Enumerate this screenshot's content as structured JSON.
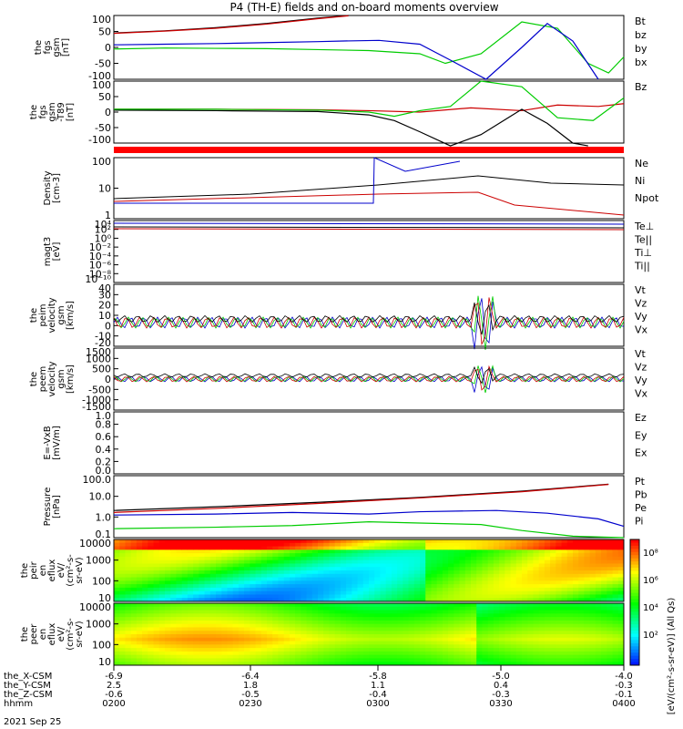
{
  "chart_data": {
    "type": "line",
    "title": "P4 (TH-E) fields and on-board moments overview",
    "panels": [
      {
        "id": "fgs",
        "ylabel": [
          "the",
          "fgs",
          "gsm",
          "[nT]"
        ],
        "yticks": [
          "100",
          "50",
          "0",
          "-50",
          "-100"
        ],
        "ylim": [
          -100,
          100
        ],
        "legend": [
          {
            "label": "Bt",
            "color": "#000000"
          },
          {
            "label": "bz",
            "color": "#cc0000"
          },
          {
            "label": "by",
            "color": "#00cc00"
          },
          {
            "label": "bx",
            "color": "#0000cc"
          }
        ],
        "series": [
          {
            "name": "Bt",
            "color": "#000000",
            "x": [
              0,
              0.1,
              0.2,
              0.3,
              0.4,
              0.46
            ],
            "y": [
              45,
              52,
              62,
              75,
              92,
              100
            ]
          },
          {
            "name": "bz",
            "color": "#cc0000",
            "x": [
              0,
              0.1,
              0.2,
              0.3,
              0.4,
              0.46
            ],
            "y": [
              44,
              51,
              60,
              73,
              90,
              99
            ]
          },
          {
            "name": "by",
            "color": "#00cc00",
            "x": [
              0,
              0.1,
              0.2,
              0.3,
              0.4,
              0.5,
              0.6,
              0.65,
              0.72,
              0.8,
              0.87,
              0.93,
              0.97,
              1.0
            ],
            "y": [
              -5,
              -2,
              -3,
              -4,
              -7,
              -10,
              -20,
              -50,
              -20,
              80,
              60,
              -50,
              -80,
              -30
            ]
          },
          {
            "name": "bx",
            "color": "#0000cc",
            "x": [
              0,
              0.1,
              0.2,
              0.3,
              0.4,
              0.45,
              0.52,
              0.6,
              0.66,
              0.73,
              0.8,
              0.85,
              0.9,
              0.95
            ],
            "y": [
              8,
              10,
              12,
              15,
              18,
              20,
              22,
              10,
              -40,
              -100,
              0,
              75,
              20,
              -100
            ]
          }
        ]
      },
      {
        "id": "fgs_smooth",
        "ylabel": [
          "the",
          "fgs",
          "gsm",
          "-T89",
          "[nT]"
        ],
        "yticks": [
          "100",
          "50",
          "0",
          "-50",
          "-100"
        ],
        "ylim": [
          -120,
          100
        ],
        "legend": [
          {
            "label": "Bz",
            "color": "#cc0000"
          }
        ],
        "series": [
          {
            "name": "Bz",
            "color": "#cc0000",
            "x": [
              0,
              0.2,
              0.4,
              0.5,
              0.6,
              0.7,
              0.8,
              0.87,
              0.95,
              1.0
            ],
            "y": [
              0,
              0,
              -2,
              -5,
              -10,
              5,
              -5,
              15,
              10,
              20
            ]
          },
          {
            "name": "k",
            "color": "#000000",
            "x": [
              0,
              0.2,
              0.4,
              0.5,
              0.55,
              0.6,
              0.66,
              0.72,
              0.8,
              0.85,
              0.9,
              0.93
            ],
            "y": [
              -3,
              -5,
              -8,
              -20,
              -40,
              -80,
              -130,
              -90,
              0,
              -50,
              -120,
              -130
            ]
          },
          {
            "name": "g",
            "color": "#00cc00",
            "x": [
              0,
              0.2,
              0.4,
              0.5,
              0.55,
              0.6,
              0.66,
              0.72,
              0.8,
              0.87,
              0.94,
              1.0
            ],
            "y": [
              0,
              0,
              -3,
              -10,
              -25,
              -5,
              10,
              100,
              80,
              -30,
              -40,
              40
            ]
          }
        ]
      },
      {
        "id": "density",
        "ylabel": [
          "Density",
          "[cm-3]"
        ],
        "yticks": [
          "100",
          "10",
          "1"
        ],
        "log": true,
        "legend": [
          {
            "label": "Ne",
            "color": "#cc0000"
          },
          {
            "label": "Ni",
            "color": "#000000"
          },
          {
            "label": "Npot",
            "color": "#0000cc"
          }
        ]
      },
      {
        "id": "temperature",
        "ylabel": [
          "magt3",
          "[eV]"
        ],
        "yticks": [
          "10⁴",
          "10²",
          "10⁰",
          "10⁻²",
          "10⁻⁴",
          "10⁻⁶",
          "10⁻⁸",
          "10⁻¹⁰"
        ],
        "legend": [
          {
            "label": "Te⊥",
            "color": "#cc0000"
          },
          {
            "label": "Te||",
            "color": "#000000"
          },
          {
            "label": "Ti⊥",
            "color": "#cc0000"
          },
          {
            "label": "Ti||",
            "color": "#00cc00"
          }
        ]
      },
      {
        "id": "peim_velocity",
        "ylabel": [
          "the",
          "peim",
          "velocity",
          "gsm",
          "[km/s]"
        ],
        "yticks": [
          "40",
          "30",
          "20",
          "10",
          "0",
          "-10",
          "-20"
        ],
        "ylim": [
          -20,
          40
        ],
        "legend": [
          {
            "label": "Vt",
            "color": "#000000"
          },
          {
            "label": "Vz",
            "color": "#cc0000"
          },
          {
            "label": "Vy",
            "color": "#00cc00"
          },
          {
            "label": "Vx",
            "color": "#0000cc"
          }
        ]
      },
      {
        "id": "peem_velocity",
        "ylabel": [
          "the",
          "peem",
          "velocity",
          "gsm",
          "[km/s]"
        ],
        "yticks": [
          "1500",
          "1000",
          "500",
          "0",
          "-500",
          "-1000",
          "-1500"
        ],
        "ylim": [
          -1500,
          1500
        ],
        "legend": [
          {
            "label": "Vt",
            "color": "#000000"
          },
          {
            "label": "Vz",
            "color": "#cc0000"
          },
          {
            "label": "Vy",
            "color": "#00cc00"
          },
          {
            "label": "Vx",
            "color": "#0000cc"
          }
        ]
      },
      {
        "id": "efield",
        "ylabel": [
          "E=-VxB",
          "[mV/m]"
        ],
        "yticks": [
          "1.0",
          "0.8",
          "0.6",
          "0.4",
          "0.2",
          "0.0"
        ],
        "ylim": [
          0,
          1
        ],
        "legend": [
          {
            "label": "Ez",
            "color": "#cc0000"
          },
          {
            "label": "Ey",
            "color": "#00cc00"
          },
          {
            "label": "Ex",
            "color": "#0000cc"
          }
        ]
      },
      {
        "id": "pressure",
        "ylabel": [
          "Pressure",
          "[nPa]"
        ],
        "yticks": [
          "100.0",
          "10.0",
          "1.0",
          "0.1"
        ],
        "log": true,
        "legend": [
          {
            "label": "Pt",
            "color": "#000000"
          },
          {
            "label": "Pb",
            "color": "#cc0000"
          },
          {
            "label": "Pe",
            "color": "#00cc00"
          },
          {
            "label": "Pi",
            "color": "#0000cc"
          }
        ],
        "series": [
          {
            "name": "Pt",
            "color": "#000000",
            "x": [
              0,
              0.2,
              0.4,
              0.6,
              0.8,
              0.97
            ],
            "y": [
              1.4,
              2.2,
              3.8,
              7,
              15,
              35
            ]
          },
          {
            "name": "Pb",
            "color": "#cc0000",
            "x": [
              0,
              0.2,
              0.4,
              0.6,
              0.8,
              0.97
            ],
            "y": [
              1.1,
              1.8,
              3.3,
              6.5,
              14,
              34
            ]
          },
          {
            "name": "Pe",
            "color": "#00cc00",
            "x": [
              0,
              0.2,
              0.35,
              0.5,
              0.6,
              0.72,
              0.8,
              0.9,
              1.0
            ],
            "y": [
              0.15,
              0.18,
              0.22,
              0.35,
              0.3,
              0.25,
              0.12,
              0.06,
              0.05
            ]
          },
          {
            "name": "Pi",
            "color": "#0000cc",
            "x": [
              0,
              0.2,
              0.35,
              0.5,
              0.6,
              0.75,
              0.85,
              0.95,
              1.0
            ],
            "y": [
              0.8,
              0.9,
              1.1,
              0.9,
              1.2,
              1.4,
              1.0,
              0.5,
              0.2
            ]
          }
        ]
      },
      {
        "id": "peir",
        "ylabel": [
          "the",
          "peir",
          "en",
          "eflux",
          "eV/",
          "(cm²-s-",
          "sr-eV)"
        ],
        "yticks": [
          "10000",
          "1000",
          "100",
          "10"
        ]
      },
      {
        "id": "peer",
        "ylabel": [
          "the",
          "peer",
          "en",
          "eflux",
          "eV/",
          "(cm²-s-",
          "sr-eV)"
        ],
        "yticks": [
          "10000",
          "1000",
          "100",
          "10"
        ]
      }
    ],
    "colorbar": {
      "label": "[eV/(cm²-s-sr-eV)] (All Qs)",
      "ticks": [
        "10⁸",
        "10⁶",
        "10⁴",
        "10²"
      ]
    },
    "x_rows": [
      {
        "label": "the_X-CSM",
        "values": [
          "-6.9",
          "-6.4",
          "-5.8",
          "-5.0",
          "-4.0"
        ]
      },
      {
        "label": "the_Y-CSM",
        "values": [
          "2.5",
          "1.8",
          "1.1",
          "0.4",
          "-0.3"
        ]
      },
      {
        "label": "the_Z-CSM",
        "values": [
          "-0.6",
          "-0.5",
          "-0.4",
          "-0.3",
          "-0.1"
        ]
      },
      {
        "label": "hhmm",
        "values": [
          "0200",
          "0230",
          "0300",
          "0330",
          "0400"
        ]
      }
    ],
    "date": "2021 Sep 25"
  }
}
